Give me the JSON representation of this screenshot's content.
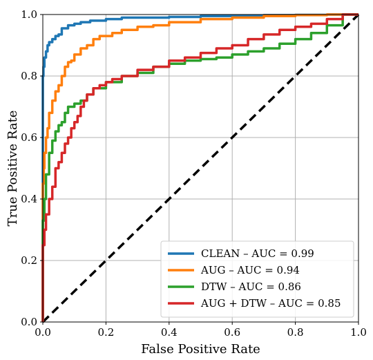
{
  "chart_data": {
    "type": "line",
    "xlabel": "False Positive Rate",
    "ylabel": "True Positive Rate",
    "xlim": [
      0,
      1
    ],
    "ylim": [
      0,
      1
    ],
    "xticks": [
      "0.0",
      "0.2",
      "0.4",
      "0.6",
      "0.8",
      "1.0"
    ],
    "yticks": [
      "0.0",
      "0.2",
      "0.4",
      "0.6",
      "0.8",
      "1.0"
    ],
    "grid": true,
    "legend_position": "lower-right",
    "series": [
      {
        "name": "CLEAN – AUC = 0.99",
        "color": "#1f77b4",
        "x": [
          0,
          0,
          0.002,
          0.005,
          0.01,
          0.015,
          0.02,
          0.03,
          0.04,
          0.05,
          0.06,
          0.08,
          0.1,
          0.12,
          0.15,
          0.2,
          0.25,
          0.3,
          0.4,
          0.5,
          0.6,
          0.7,
          0.8,
          0.9,
          1.0
        ],
        "y": [
          0,
          0.5,
          0.8,
          0.83,
          0.86,
          0.88,
          0.9,
          0.91,
          0.92,
          0.93,
          0.935,
          0.955,
          0.965,
          0.97,
          0.975,
          0.98,
          0.985,
          0.99,
          0.99,
          0.992,
          0.995,
          0.997,
          0.998,
          0.999,
          1.0
        ]
      },
      {
        "name": "AUG – AUC = 0.94",
        "color": "#ff7f0e",
        "x": [
          0,
          0.003,
          0.005,
          0.01,
          0.015,
          0.02,
          0.03,
          0.04,
          0.05,
          0.06,
          0.07,
          0.08,
          0.09,
          0.1,
          0.12,
          0.14,
          0.16,
          0.18,
          0.2,
          0.22,
          0.25,
          0.3,
          0.35,
          0.4,
          0.5,
          0.6,
          0.7,
          0.8,
          0.9,
          1.0
        ],
        "y": [
          0,
          0.45,
          0.5,
          0.55,
          0.6,
          0.63,
          0.68,
          0.72,
          0.75,
          0.77,
          0.8,
          0.83,
          0.845,
          0.85,
          0.87,
          0.89,
          0.9,
          0.92,
          0.93,
          0.93,
          0.94,
          0.95,
          0.96,
          0.965,
          0.975,
          0.985,
          0.99,
          0.995,
          0.998,
          1.0
        ]
      },
      {
        "name": "DTW – AUC = 0.86",
        "color": "#2ca02c",
        "x": [
          0,
          0.0,
          0.005,
          0.01,
          0.02,
          0.03,
          0.04,
          0.05,
          0.06,
          0.07,
          0.08,
          0.1,
          0.12,
          0.14,
          0.16,
          0.2,
          0.25,
          0.3,
          0.35,
          0.4,
          0.45,
          0.5,
          0.55,
          0.6,
          0.65,
          0.7,
          0.75,
          0.8,
          0.85,
          0.9,
          0.95,
          1.0
        ],
        "y": [
          0,
          0.25,
          0.33,
          0.4,
          0.48,
          0.55,
          0.59,
          0.62,
          0.64,
          0.65,
          0.68,
          0.7,
          0.71,
          0.72,
          0.74,
          0.76,
          0.78,
          0.8,
          0.81,
          0.83,
          0.84,
          0.85,
          0.855,
          0.86,
          0.87,
          0.88,
          0.89,
          0.905,
          0.92,
          0.94,
          0.965,
          1.0
        ]
      },
      {
        "name": "AUG + DTW – AUC = 0.85",
        "color": "#d62728",
        "x": [
          0,
          0,
          0.005,
          0.01,
          0.02,
          0.03,
          0.04,
          0.05,
          0.06,
          0.07,
          0.08,
          0.09,
          0.1,
          0.11,
          0.12,
          0.13,
          0.14,
          0.16,
          0.18,
          0.2,
          0.22,
          0.25,
          0.3,
          0.35,
          0.4,
          0.45,
          0.5,
          0.55,
          0.6,
          0.65,
          0.7,
          0.75,
          0.8,
          0.85,
          0.9,
          0.95,
          1.0
        ],
        "y": [
          0,
          0.15,
          0.25,
          0.3,
          0.35,
          0.4,
          0.44,
          0.5,
          0.52,
          0.55,
          0.58,
          0.6,
          0.63,
          0.65,
          0.67,
          0.7,
          0.72,
          0.74,
          0.76,
          0.77,
          0.78,
          0.79,
          0.8,
          0.82,
          0.83,
          0.85,
          0.86,
          0.875,
          0.89,
          0.9,
          0.92,
          0.935,
          0.95,
          0.96,
          0.97,
          0.985,
          1.0
        ]
      }
    ],
    "reference_line": {
      "x": [
        0,
        1
      ],
      "y": [
        0,
        1
      ],
      "color": "#000000",
      "style": "dashed"
    }
  }
}
